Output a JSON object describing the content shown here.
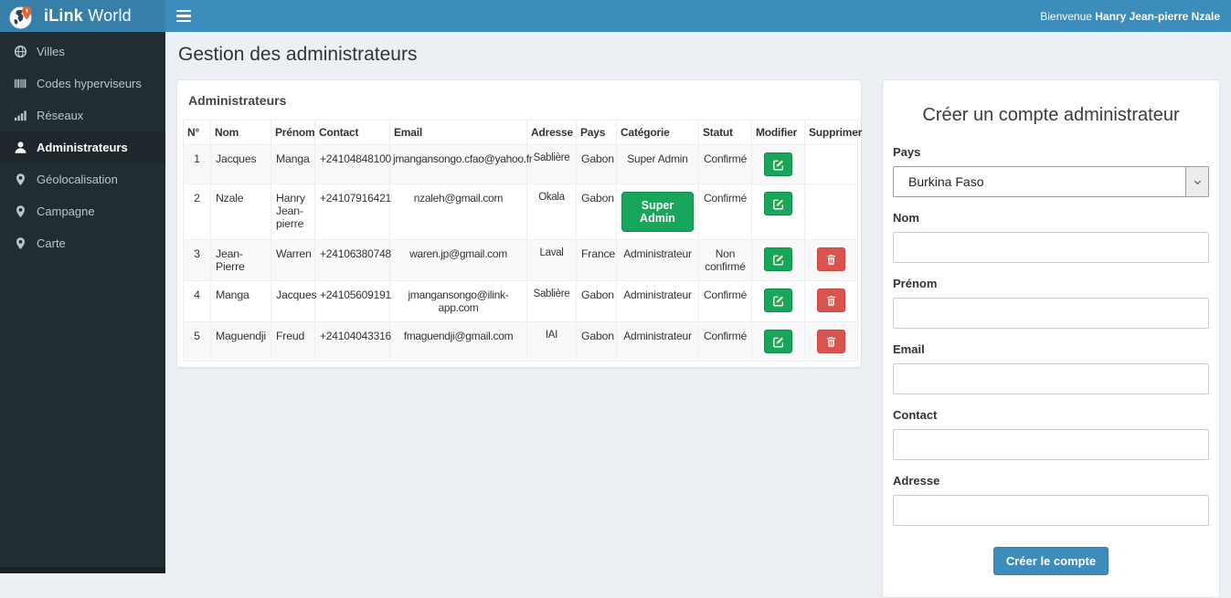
{
  "colors": {
    "navbar": "#3c8dbc",
    "logo_bg": "#367fa9",
    "sidebar_bg": "#222d32",
    "sidebar_active_bg": "#1e282c",
    "sidebar_text": "#b8c7ce",
    "content_bg": "#ecf0f5",
    "success": "#17a65a",
    "danger": "#d9534f",
    "primary": "#3c8dbc"
  },
  "header": {
    "logo_icon": "globe-pin-logo-icon",
    "brand_bold": "iLink",
    "brand_regular": " World",
    "menu_icon": "hamburger-icon",
    "welcome_prefix": "Bienvenue ",
    "welcome_name": "Hanry Jean-pierre Nzale"
  },
  "sidebar": {
    "items": [
      {
        "label": "Villes",
        "icon": "globe-icon",
        "active": false
      },
      {
        "label": "Codes hyperviseurs",
        "icon": "barcode-icon",
        "active": false
      },
      {
        "label": "Réseaux",
        "icon": "signal-icon",
        "active": false
      },
      {
        "label": "Administrateurs",
        "icon": "user-icon",
        "active": true
      },
      {
        "label": "Géolocalisation",
        "icon": "map-marker-icon",
        "active": false
      },
      {
        "label": "Campagne",
        "icon": "map-marker-icon",
        "active": false
      },
      {
        "label": "Carte",
        "icon": "map-marker-icon",
        "active": false
      }
    ]
  },
  "page": {
    "title": "Gestion des administrateurs"
  },
  "admin_table": {
    "panel_title": "Administrateurs",
    "headers": [
      "N°",
      "Nom",
      "Prénom",
      "Contact",
      "Email",
      "Adresse",
      "Pays",
      "Catégorie",
      "Statut",
      "Modifier",
      "Supprimer"
    ],
    "edit_icon": "edit-icon",
    "delete_icon": "trash-icon",
    "rows": [
      {
        "n": "1",
        "nom": "Jacques",
        "prenom": "Manga",
        "contact": "+24104848100",
        "email": "jmangansongo.cfao@yahoo.fr",
        "adresse": "Sablière",
        "pays": "Gabon",
        "categorie": "Super Admin",
        "categorie_style": "text",
        "statut": "Confirmé",
        "can_delete": false
      },
      {
        "n": "2",
        "nom": "Nzale",
        "prenom": "Hanry Jean-pierre",
        "contact": "+24107916421",
        "email": "nzaleh@gmail.com",
        "adresse": "Okala",
        "pays": "Gabon",
        "categorie": "Super Admin",
        "categorie_style": "button",
        "statut": "Confirmé",
        "can_delete": false
      },
      {
        "n": "3",
        "nom": "Jean-Pierre",
        "prenom": "Warren",
        "contact": "+24106380748",
        "email": "waren.jp@gmail.com",
        "adresse": "Laval",
        "pays": "France",
        "categorie": "Administrateur",
        "categorie_style": "text",
        "statut": "Non confirmé",
        "can_delete": true
      },
      {
        "n": "4",
        "nom": "Manga",
        "prenom": "Jacques",
        "contact": "+24105609191",
        "email": "jmangansongo@ilink-app.com",
        "adresse": "Sablière",
        "pays": "Gabon",
        "categorie": "Administrateur",
        "categorie_style": "text",
        "statut": "Confirmé",
        "can_delete": true
      },
      {
        "n": "5",
        "nom": "Maguendji",
        "prenom": "Freud",
        "contact": "+24104043316",
        "email": "fmaguendji@gmail.com",
        "adresse": "IAI",
        "pays": "Gabon",
        "categorie": "Administrateur",
        "categorie_style": "text",
        "statut": "Confirmé",
        "can_delete": true
      }
    ]
  },
  "form": {
    "title": "Créer un compte administrateur",
    "fields": [
      {
        "name": "pays",
        "label": "Pays",
        "type": "select",
        "value": "Burkina Faso",
        "icon": "chevron-down-icon"
      },
      {
        "name": "nom",
        "label": "Nom",
        "type": "text",
        "value": "",
        "placeholder": ""
      },
      {
        "name": "prenom",
        "label": "Prénom",
        "type": "text",
        "value": "",
        "placeholder": ""
      },
      {
        "name": "email",
        "label": "Email",
        "type": "text",
        "value": "",
        "placeholder": ""
      },
      {
        "name": "contact",
        "label": "Contact",
        "type": "text",
        "value": "",
        "placeholder": ""
      },
      {
        "name": "adresse",
        "label": "Adresse",
        "type": "text",
        "value": "",
        "placeholder": ""
      }
    ],
    "submit_label": "Créer le compte"
  }
}
